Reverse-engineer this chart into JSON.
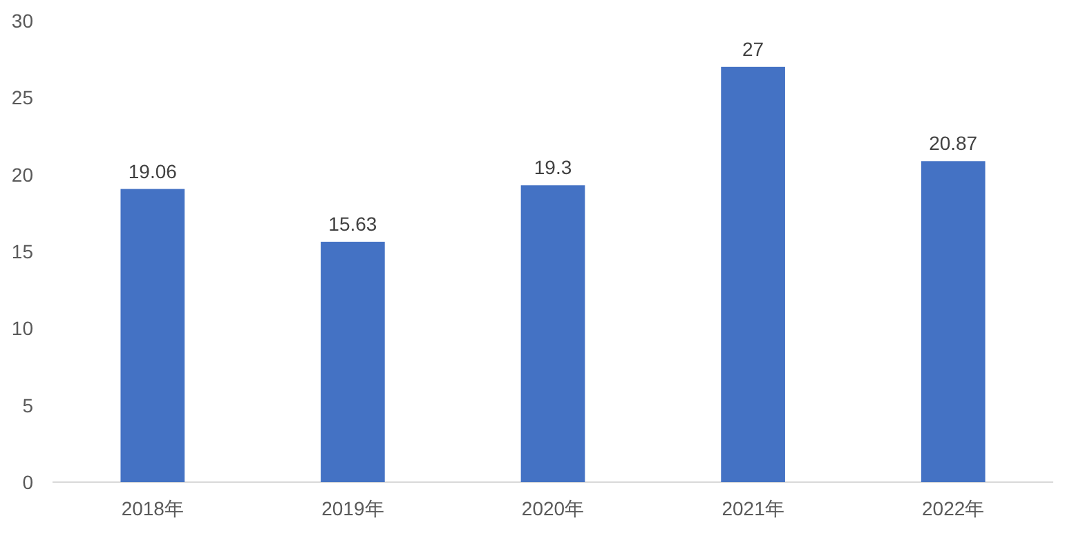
{
  "chart_data": {
    "type": "bar",
    "categories": [
      "2018年",
      "2019年",
      "2020年",
      "2021年",
      "2022年"
    ],
    "values": [
      19.06,
      15.63,
      19.3,
      27,
      20.87
    ],
    "color": "#4472c4",
    "ylim": [
      0,
      30
    ],
    "yticks": [
      0,
      5,
      10,
      15,
      20,
      25,
      30
    ],
    "grid": false,
    "data_labels": true
  }
}
